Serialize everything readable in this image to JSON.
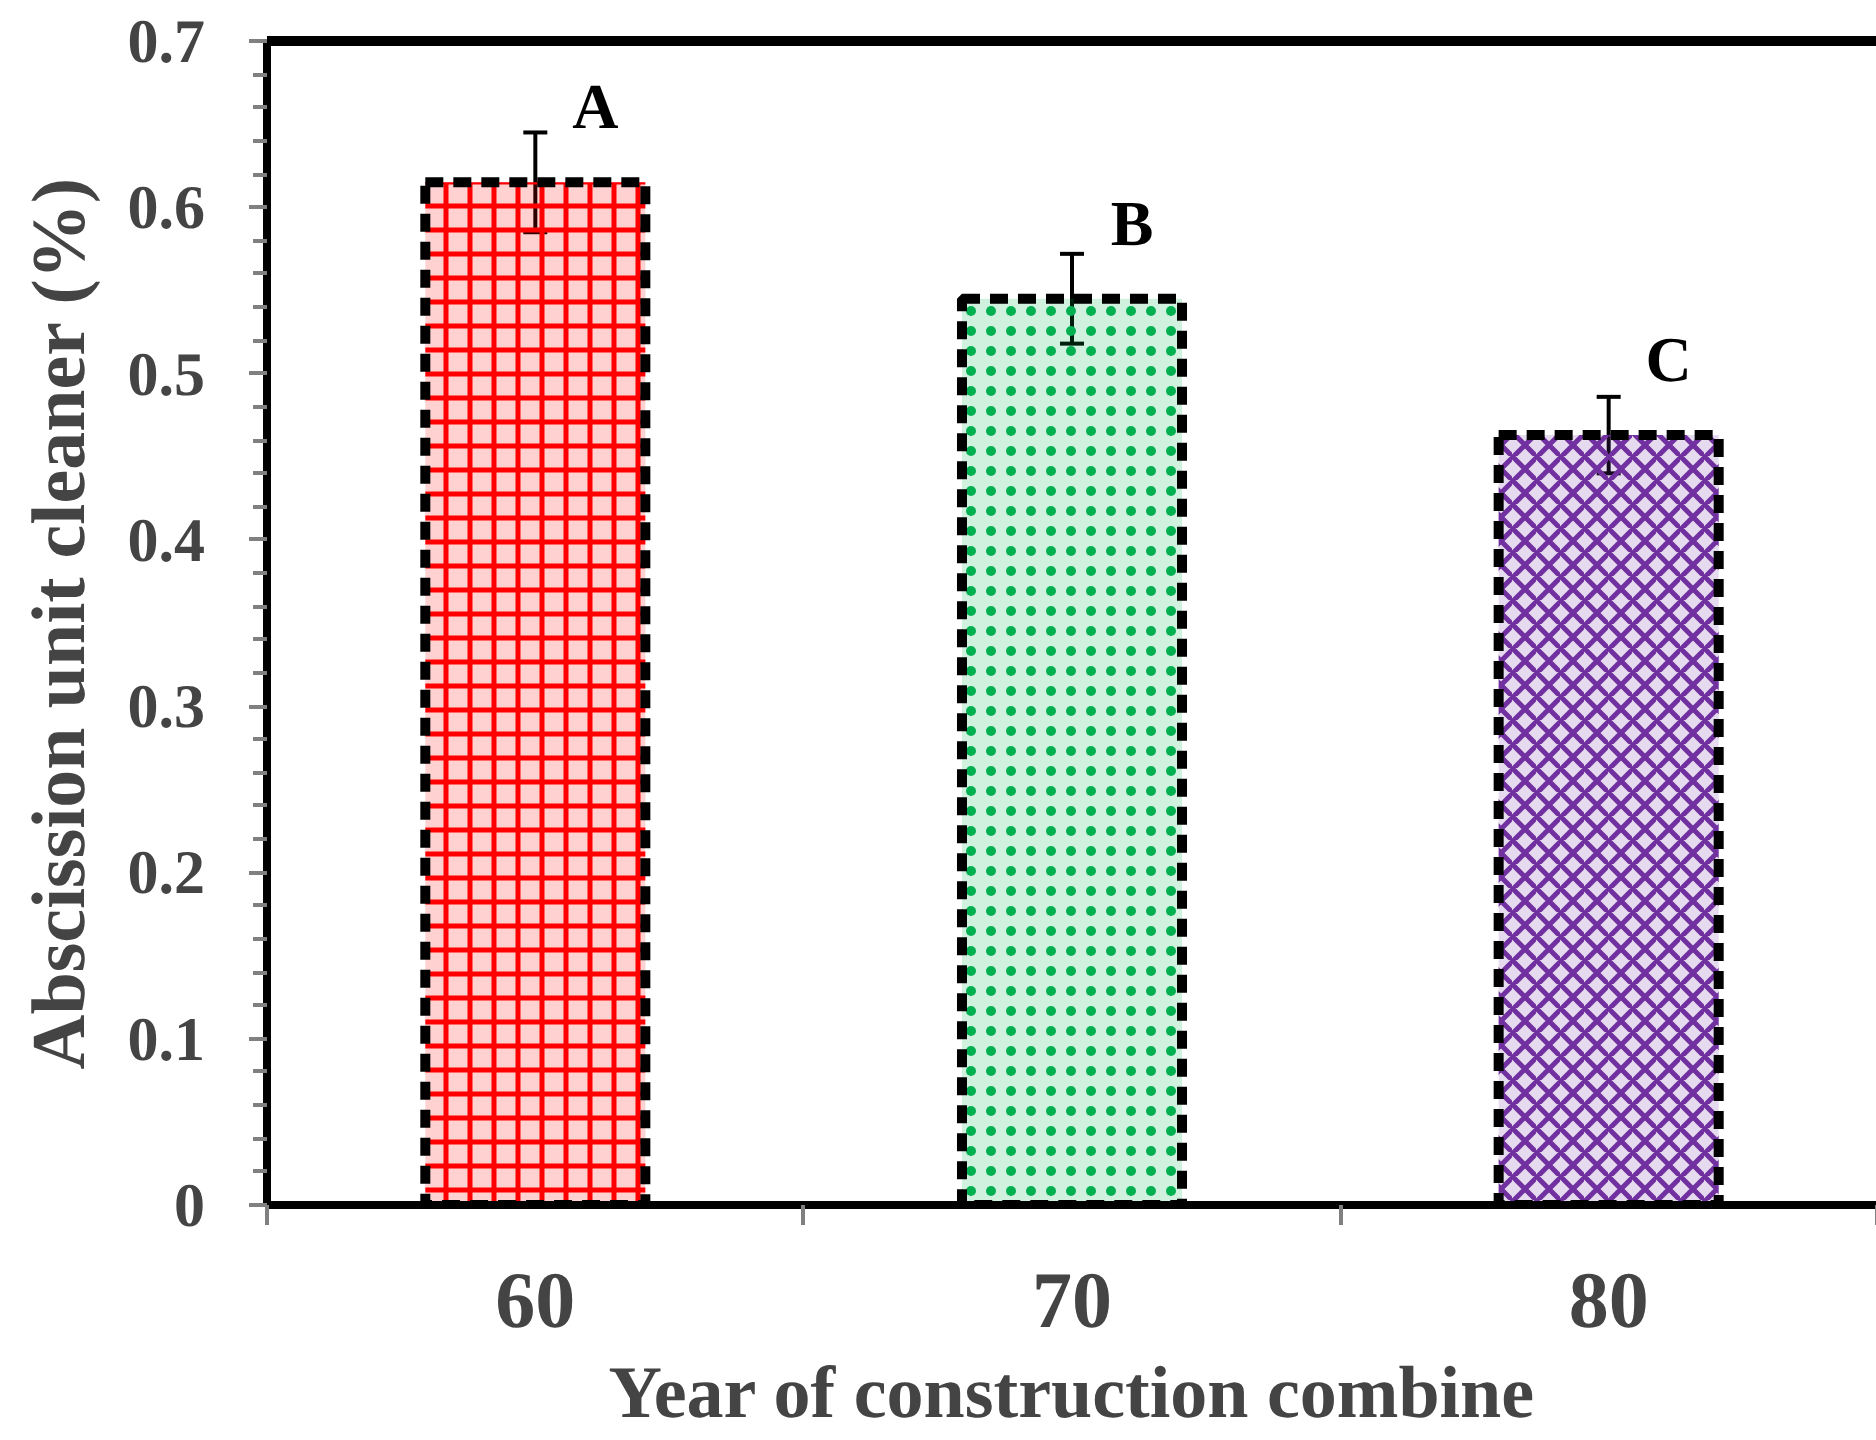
{
  "chart_data": {
    "type": "bar",
    "xlabel": "Year of construction combine",
    "ylabel": "Abscission unit cleaner (%)",
    "categories": [
      "60",
      "70",
      "80"
    ],
    "values": [
      0.615,
      0.545,
      0.463
    ],
    "errors": [
      0.03,
      0.027,
      0.023
    ],
    "colors": [
      "#ff0000",
      "#00b050",
      "#7030a0"
    ],
    "ylim": [
      0,
      0.7
    ],
    "yticks": [
      0,
      {
        "value": 0.02,
        "label": null
      },
      {
        "value": 0.04,
        "label": null
      },
      {
        "value": 0.06,
        "label": null
      },
      {
        "value": 0.08,
        "label": null
      },
      0.1,
      {
        "value": 0.12,
        "label": null
      },
      {
        "value": 0.14,
        "label": null
      },
      {
        "value": 0.16,
        "label": null
      },
      {
        "value": 0.18,
        "label": null
      },
      0.2,
      {
        "value": 0.22,
        "label": null
      },
      {
        "value": 0.24,
        "label": null
      },
      {
        "value": 0.26,
        "label": null
      },
      {
        "value": 0.28,
        "label": null
      },
      0.3,
      {
        "value": 0.32,
        "label": null
      },
      {
        "value": 0.34,
        "label": null
      },
      {
        "value": 0.36,
        "label": null
      },
      {
        "value": 0.38,
        "label": null
      },
      0.4,
      {
        "value": 0.42,
        "label": null
      },
      {
        "value": 0.44,
        "label": null
      },
      {
        "value": 0.46,
        "label": null
      },
      {
        "value": 0.48,
        "label": null
      },
      0.5,
      {
        "value": 0.52,
        "label": null
      },
      {
        "value": 0.54,
        "label": null
      },
      {
        "value": 0.56,
        "label": null
      },
      {
        "value": 0.58,
        "label": null
      },
      0.6,
      {
        "value": 0.62,
        "label": null
      },
      {
        "value": 0.64,
        "label": null
      },
      {
        "value": 0.66,
        "label": null
      },
      {
        "value": 0.68,
        "label": null
      },
      0.7
    ],
    "annotations": [
      {
        "text": "A",
        "x": "60",
        "y": 0.615
      },
      {
        "text": "B",
        "x": "70",
        "y": 0.545
      },
      {
        "text": "C",
        "x": "80",
        "y": 0.463
      }
    ]
  }
}
